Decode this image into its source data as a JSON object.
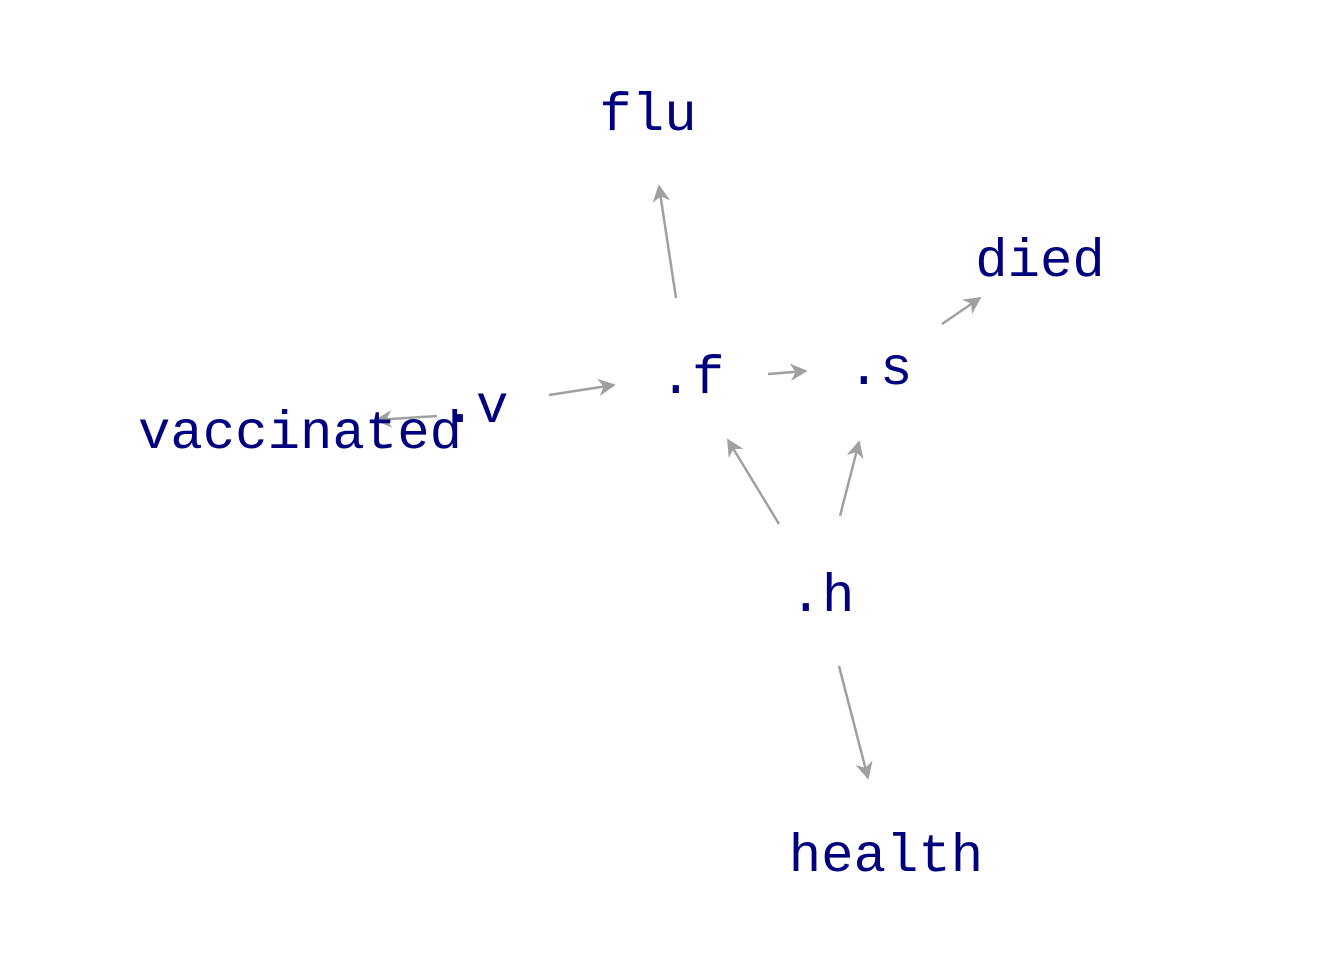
{
  "diagram": {
    "colors": {
      "node_text": "#00007f",
      "edge": "#a0a0a0"
    },
    "nodes": {
      "flu": {
        "label": "flu"
      },
      "died": {
        "label": "died"
      },
      "f": {
        "label": ".f"
      },
      "s": {
        "label": ".s"
      },
      "v": {
        "label": ".v"
      },
      "vaccinated": {
        "label": "vaccinated"
      },
      "h": {
        "label": ".h"
      },
      "health": {
        "label": "health"
      }
    },
    "edges": [
      {
        "from": ".f",
        "to": "flu"
      },
      {
        "from": ".s",
        "to": "died"
      },
      {
        "from": ".f",
        "to": ".s"
      },
      {
        "from": ".v",
        "to": ".f"
      },
      {
        "from": ".v",
        "to": "vaccinated"
      },
      {
        "from": ".h",
        "to": ".f"
      },
      {
        "from": ".h",
        "to": ".s"
      },
      {
        "from": ".h",
        "to": "health"
      }
    ]
  }
}
